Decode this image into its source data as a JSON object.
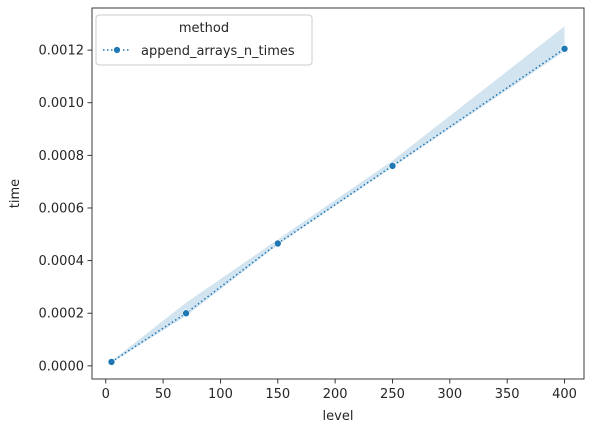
{
  "chart_data": {
    "type": "line",
    "xlabel": "level",
    "ylabel": "time",
    "xlim": [
      -12,
      417
    ],
    "ylim": [
      -5e-05,
      0.00136
    ],
    "xticks": [
      0,
      50,
      100,
      150,
      200,
      250,
      300,
      350,
      400
    ],
    "yticks": [
      0.0,
      0.0002,
      0.0004,
      0.0006,
      0.0008,
      0.001,
      0.0012
    ],
    "ytick_labels": [
      "0.0000",
      "0.0002",
      "0.0004",
      "0.0006",
      "0.0008",
      "0.0010",
      "0.0012"
    ],
    "grid": false,
    "legend": {
      "title": "method",
      "placement": "top-left"
    },
    "series": [
      {
        "name": "append_arrays_n_times",
        "color": "#1f77b4",
        "linestyle": "dotted",
        "marker": "circle",
        "x": [
          5,
          70,
          150,
          250,
          400
        ],
        "y": [
          1.5e-05,
          0.0002,
          0.000465,
          0.00076,
          0.001205
        ],
        "ci_lower": [
          1.2e-05,
          0.00019,
          0.00046,
          0.000755,
          0.001195
        ],
        "ci_upper": [
          1.8e-05,
          0.00024,
          0.00048,
          0.00078,
          0.00129
        ]
      }
    ]
  }
}
